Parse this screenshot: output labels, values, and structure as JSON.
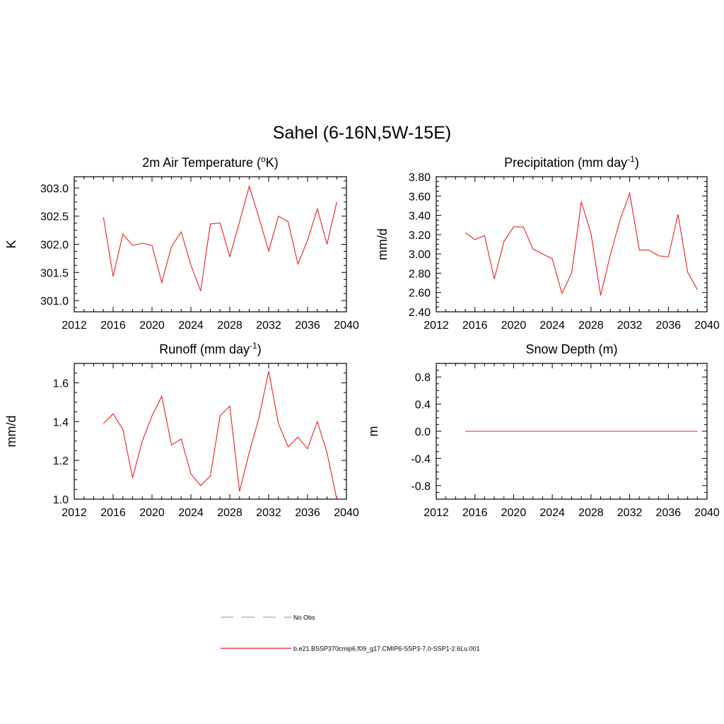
{
  "title": "Sahel (6-16N,5W-15E)",
  "colors": {
    "model_line": "#e8201f",
    "obs_line": "#9f9fdf",
    "axis": "#000000"
  },
  "legend": [
    {
      "label": "No Obs",
      "style": "dashed",
      "color": "#9f9fdf"
    },
    {
      "label": "b.e21.BSSP370cmip6.f09_g17.CMIP6-SSP3-7.0-SSP1-2.6Lu.001",
      "style": "solid",
      "color": "#e8201f"
    }
  ],
  "chart_data": [
    {
      "type": "line",
      "title_main": "2m Air Temperature (",
      "title_sup": "o",
      "title_end": "K)",
      "ylabel": "K",
      "xlim": [
        2012,
        2040
      ],
      "ylim": [
        300.8,
        303.2
      ],
      "xticks": [
        2012,
        2016,
        2020,
        2024,
        2028,
        2032,
        2036,
        2040
      ],
      "yticks": [
        301.0,
        301.5,
        302.0,
        302.5,
        303.0
      ],
      "ydecimals": 1,
      "series": [
        {
          "x": [
            2015,
            2016,
            2017,
            2018,
            2019,
            2020,
            2021,
            2022,
            2023,
            2024,
            2025,
            2026,
            2027,
            2028,
            2029,
            2030,
            2031,
            2032,
            2033,
            2034,
            2035,
            2036,
            2037,
            2038,
            2039
          ],
          "y": [
            302.48,
            301.43,
            302.18,
            301.98,
            302.02,
            301.98,
            301.32,
            301.96,
            302.22,
            301.63,
            301.17,
            302.36,
            302.38,
            301.78,
            302.4,
            303.03,
            302.47,
            301.88,
            302.5,
            302.4,
            301.65,
            302.07,
            302.63,
            302.0,
            302.75
          ]
        }
      ]
    },
    {
      "type": "line",
      "title_main": "Precipitation (mm day",
      "title_sup": "-1",
      "title_end": ")",
      "ylabel": "mm/d",
      "xlim": [
        2012,
        2040
      ],
      "ylim": [
        2.4,
        3.8
      ],
      "xticks": [
        2012,
        2016,
        2020,
        2024,
        2028,
        2032,
        2036,
        2040
      ],
      "yticks": [
        2.4,
        2.6,
        2.8,
        3.0,
        3.2,
        3.4,
        3.6,
        3.8
      ],
      "ydecimals": 2,
      "series": [
        {
          "x": [
            2015,
            2016,
            2017,
            2018,
            2019,
            2020,
            2021,
            2022,
            2023,
            2024,
            2025,
            2026,
            2027,
            2028,
            2029,
            2030,
            2031,
            2032,
            2033,
            2034,
            2035,
            2036,
            2037,
            2038,
            2039
          ],
          "y": [
            3.22,
            3.15,
            3.19,
            2.74,
            3.13,
            3.28,
            3.28,
            3.05,
            3.0,
            2.95,
            2.59,
            2.8,
            3.54,
            3.21,
            2.57,
            2.99,
            3.35,
            3.63,
            3.04,
            3.04,
            2.98,
            2.97,
            3.41,
            2.81,
            2.63
          ]
        }
      ]
    },
    {
      "type": "line",
      "title_main": "Runoff (mm day",
      "title_sup": "-1",
      "title_end": ")",
      "ylabel": "mm/d",
      "xlim": [
        2012,
        2040
      ],
      "ylim": [
        1.0,
        1.7
      ],
      "xticks": [
        2012,
        2016,
        2020,
        2024,
        2028,
        2032,
        2036,
        2040
      ],
      "yticks": [
        1.0,
        1.2,
        1.4,
        1.6
      ],
      "ydecimals": 1,
      "series": [
        {
          "x": [
            2015,
            2016,
            2017,
            2018,
            2019,
            2020,
            2021,
            2022,
            2023,
            2024,
            2025,
            2026,
            2027,
            2028,
            2029,
            2030,
            2031,
            2032,
            2033,
            2034,
            2035,
            2036,
            2037,
            2038,
            2039
          ],
          "y": [
            1.39,
            1.44,
            1.36,
            1.11,
            1.3,
            1.43,
            1.53,
            1.28,
            1.31,
            1.13,
            1.07,
            1.12,
            1.43,
            1.48,
            1.04,
            1.24,
            1.42,
            1.66,
            1.39,
            1.27,
            1.32,
            1.26,
            1.4,
            1.24,
            1.0
          ]
        }
      ]
    },
    {
      "type": "line",
      "title_main": "Snow Depth (m)",
      "title_sup": "",
      "title_end": "",
      "ylabel": "m",
      "xlim": [
        2012,
        2040
      ],
      "ylim": [
        -1.0,
        1.0
      ],
      "xticks": [
        2012,
        2016,
        2020,
        2024,
        2028,
        2032,
        2036,
        2040
      ],
      "yticks": [
        -0.8,
        -0.4,
        0.0,
        0.4,
        0.8
      ],
      "ydecimals": 1,
      "series": [
        {
          "x": [
            2015,
            2016,
            2017,
            2018,
            2019,
            2020,
            2021,
            2022,
            2023,
            2024,
            2025,
            2026,
            2027,
            2028,
            2029,
            2030,
            2031,
            2032,
            2033,
            2034,
            2035,
            2036,
            2037,
            2038,
            2039
          ],
          "y": [
            0,
            0,
            0,
            0,
            0,
            0,
            0,
            0,
            0,
            0,
            0,
            0,
            0,
            0,
            0,
            0,
            0,
            0,
            0,
            0,
            0,
            0,
            0,
            0,
            0
          ]
        }
      ]
    }
  ]
}
